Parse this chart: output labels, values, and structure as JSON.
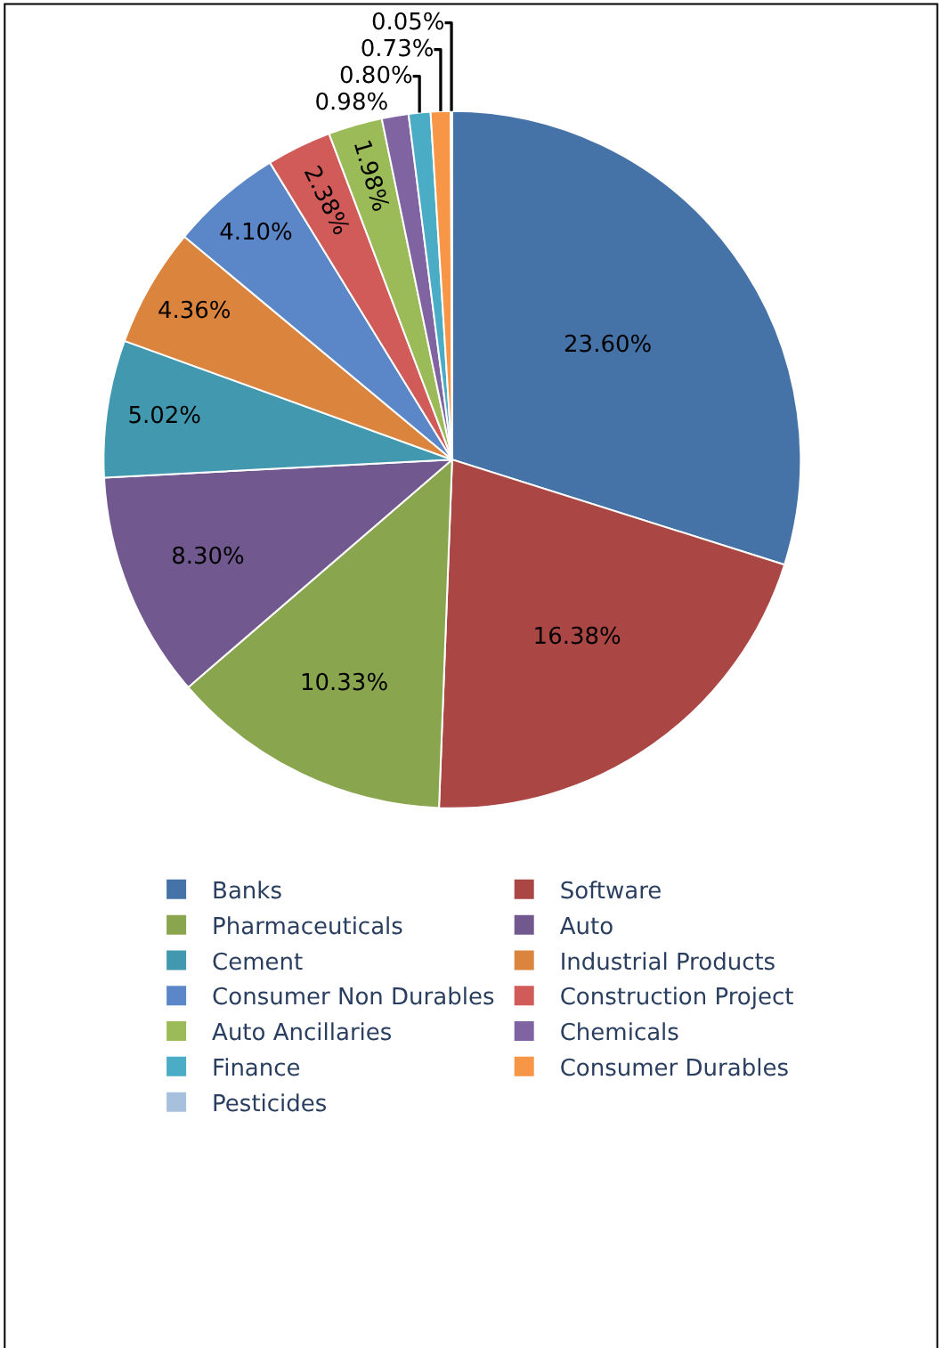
{
  "chart_data": {
    "type": "pie",
    "categories": [
      "Banks",
      "Software",
      "Pharmaceuticals",
      "Auto",
      "Cement",
      "Industrial Products",
      "Consumer Non Durables",
      "Construction Project",
      "Auto Ancillaries",
      "Chemicals",
      "Finance",
      "Consumer Durables",
      "Pesticides"
    ],
    "values": [
      23.6,
      16.38,
      10.33,
      8.3,
      5.02,
      4.36,
      4.1,
      2.38,
      1.98,
      0.98,
      0.8,
      0.73,
      0.05
    ],
    "value_labels": [
      "23.60%",
      "16.38%",
      "10.33%",
      "8.30%",
      "5.02%",
      "4.36%",
      "4.10%",
      "2.38%",
      "1.98%",
      "0.98%",
      "0.80%",
      "0.73%",
      "0.05%"
    ],
    "colors": [
      "#4572a7",
      "#aa4643",
      "#89a54e",
      "#71588f",
      "#4198af",
      "#db843d",
      "#5b87c8",
      "#d05b58",
      "#9bbb59",
      "#8064a2",
      "#4bacc6",
      "#f79646",
      "#a7c0de"
    ],
    "legend": "bottom"
  }
}
